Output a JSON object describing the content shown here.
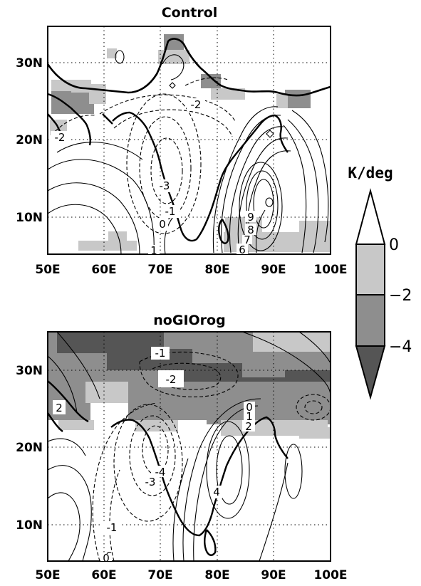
{
  "panels": [
    {
      "title": "Control",
      "xticks": [
        "50E",
        "60E",
        "70E",
        "80E",
        "90E",
        "100E"
      ],
      "yticks": [
        "10N",
        "20N",
        "30N"
      ],
      "contour_labels": [
        "-2",
        "-2",
        "-3",
        "-1",
        "0",
        "1",
        "9",
        "8",
        "7",
        "6"
      ]
    },
    {
      "title": "noGIOrog",
      "xticks": [
        "50E",
        "60E",
        "70E",
        "80E",
        "90E",
        "100E"
      ],
      "yticks": [
        "10N",
        "20N",
        "30N"
      ],
      "contour_labels": [
        "-1",
        "-2",
        "2",
        "0",
        "1",
        "2",
        "-4",
        "-3",
        "4",
        "-1",
        "0"
      ]
    }
  ],
  "colorbar": {
    "unit": "K/deg",
    "ticks": [
      "0",
      "−2",
      "−4"
    ],
    "colors": [
      "#ffffff",
      "#c8c8c8",
      "#8e8e8e",
      "#555555"
    ]
  }
}
